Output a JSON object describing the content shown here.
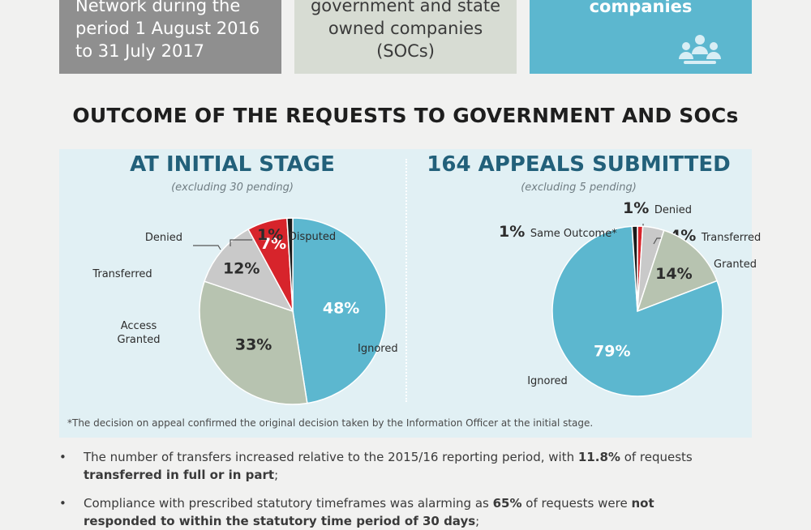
{
  "top_boxes": {
    "left": [
      "Network during the",
      "period 1 August 2016",
      "to 31 July 2017"
    ],
    "middle": [
      "government and state",
      "owned companies",
      "(SOCs)"
    ],
    "right": "companies",
    "right_icon": "people-group-icon"
  },
  "heading": "OUTCOME OF THE REQUESTS TO GOVERNMENT AND SOCs",
  "colors": {
    "ignored": "#5cb7cf",
    "granted": "#b7c3b0",
    "transferred": "#c9c9c9",
    "denied": "#d7242b",
    "disputed": "#1b1b1b",
    "same_outcome": "#1b1b1b",
    "panel": "#e1f0f4",
    "title": "#22607a"
  },
  "chart_data": [
    {
      "type": "pie",
      "title": "AT INITIAL STAGE",
      "subtitle": "(excluding 30 pending)",
      "slices": [
        {
          "key": "ignored",
          "label": "Ignored",
          "value": 48,
          "value_label": "48%"
        },
        {
          "key": "granted",
          "label_lines": [
            "Access",
            "Granted"
          ],
          "value": 33,
          "value_label": "33%"
        },
        {
          "key": "transferred",
          "label": "Transferred",
          "value": 12,
          "value_label": "12%"
        },
        {
          "key": "denied",
          "label": "Denied",
          "value": 7,
          "value_label": "7%"
        },
        {
          "key": "disputed",
          "label": "Disputed",
          "value": 1,
          "value_label": "1%"
        }
      ]
    },
    {
      "type": "pie",
      "title": "164 APPEALS SUBMITTED",
      "subtitle": "(excluding 5 pending)",
      "slices": [
        {
          "key": "denied",
          "label": "Denied",
          "value": 1,
          "value_label": "1%"
        },
        {
          "key": "transferred",
          "label": "Transferred",
          "value": 4,
          "value_label": "4%"
        },
        {
          "key": "granted",
          "label": "Granted",
          "value": 14,
          "value_label": "14%"
        },
        {
          "key": "ignored",
          "label": "Ignored",
          "value": 79,
          "value_label": "79%"
        },
        {
          "key": "same_outcome",
          "label": "Same Outcome*",
          "value": 1,
          "value_label": "1%"
        }
      ]
    }
  ],
  "footnote": "*The decision on appeal confirmed the original decision taken by the Information Officer at the initial stage.",
  "bullets": [
    {
      "dot": "•",
      "text_1": "The number of transfers increased relative to the 2015/16 reporting period, with ",
      "bold_1": "11.8%",
      "text_2": " of requests ",
      "bold_2": "transferred in full or in part",
      "text_3": ";"
    },
    {
      "dot": "•",
      "text_1": "Compliance with prescribed statutory timeframes was alarming as ",
      "bold_1": "65%",
      "text_2": " of requests were ",
      "bold_2": "not",
      "line_2": "responded to within the statutory time period of 30 days",
      "line_2_end": ";"
    }
  ]
}
